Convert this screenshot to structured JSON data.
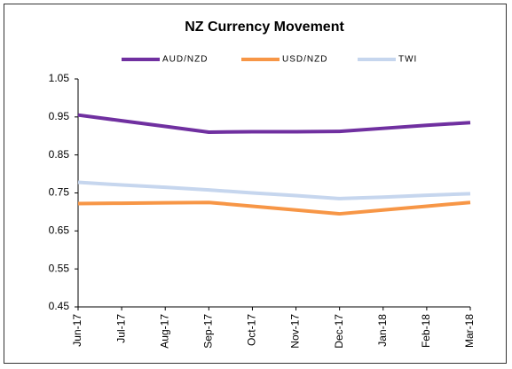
{
  "chart_data": {
    "type": "line",
    "title": "NZ Currency Movement",
    "categories": [
      "Jun-17",
      "Jul-17",
      "Aug-17",
      "Sep-17",
      "Oct-17",
      "Nov-17",
      "Dec-17",
      "Jan-18",
      "Feb-18",
      "Mar-18"
    ],
    "series": [
      {
        "name": "AUD/NZD",
        "color": "#7030a0",
        "values": [
          0.955,
          0.94,
          0.925,
          0.91,
          0.911,
          0.911,
          0.912,
          0.92,
          0.928,
          0.935
        ]
      },
      {
        "name": "USD/NZD",
        "color": "#f79646",
        "values": [
          0.722,
          0.723,
          0.724,
          0.725,
          0.715,
          0.705,
          0.695,
          0.705,
          0.715,
          0.725
        ]
      },
      {
        "name": "TWI",
        "color": "#c6d6ee",
        "values": [
          0.778,
          0.771,
          0.765,
          0.758,
          0.75,
          0.743,
          0.735,
          0.739,
          0.744,
          0.748
        ]
      }
    ],
    "ylim": [
      0.45,
      1.05
    ],
    "yticks": [
      0.45,
      0.55,
      0.65,
      0.75,
      0.85,
      0.95,
      1.05
    ],
    "grid": false,
    "legend": "top"
  }
}
